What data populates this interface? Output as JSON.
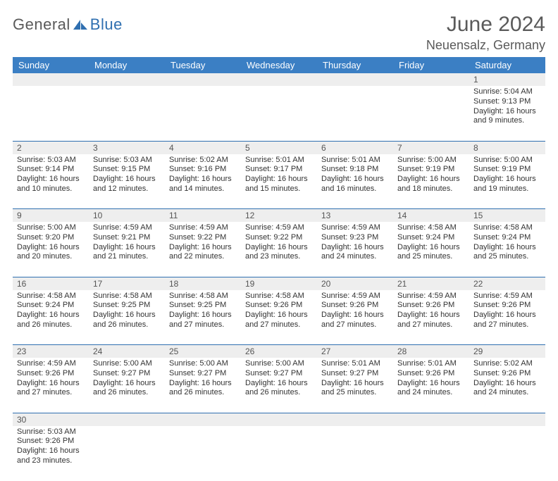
{
  "brand": {
    "general": "General",
    "blue": "Blue"
  },
  "title": "June 2024",
  "location": "Neuensalz, Germany",
  "day_headers": [
    "Sunday",
    "Monday",
    "Tuesday",
    "Wednesday",
    "Thursday",
    "Friday",
    "Saturday"
  ],
  "colors": {
    "header_bg": "#3b7fc4",
    "header_text": "#ffffff",
    "daynum_bg": "#eeeeee",
    "cell_border": "#2f6fb0",
    "title_text": "#5a5a5a",
    "body_text": "#333333",
    "brand_grey": "#5a5a5a",
    "brand_blue": "#2f6fb0"
  },
  "weeks": [
    [
      null,
      null,
      null,
      null,
      null,
      null,
      {
        "n": "1",
        "sr": "Sunrise: 5:04 AM",
        "ss": "Sunset: 9:13 PM",
        "dl": "Daylight: 16 hours and 9 minutes."
      }
    ],
    [
      {
        "n": "2",
        "sr": "Sunrise: 5:03 AM",
        "ss": "Sunset: 9:14 PM",
        "dl": "Daylight: 16 hours and 10 minutes."
      },
      {
        "n": "3",
        "sr": "Sunrise: 5:03 AM",
        "ss": "Sunset: 9:15 PM",
        "dl": "Daylight: 16 hours and 12 minutes."
      },
      {
        "n": "4",
        "sr": "Sunrise: 5:02 AM",
        "ss": "Sunset: 9:16 PM",
        "dl": "Daylight: 16 hours and 14 minutes."
      },
      {
        "n": "5",
        "sr": "Sunrise: 5:01 AM",
        "ss": "Sunset: 9:17 PM",
        "dl": "Daylight: 16 hours and 15 minutes."
      },
      {
        "n": "6",
        "sr": "Sunrise: 5:01 AM",
        "ss": "Sunset: 9:18 PM",
        "dl": "Daylight: 16 hours and 16 minutes."
      },
      {
        "n": "7",
        "sr": "Sunrise: 5:00 AM",
        "ss": "Sunset: 9:19 PM",
        "dl": "Daylight: 16 hours and 18 minutes."
      },
      {
        "n": "8",
        "sr": "Sunrise: 5:00 AM",
        "ss": "Sunset: 9:19 PM",
        "dl": "Daylight: 16 hours and 19 minutes."
      }
    ],
    [
      {
        "n": "9",
        "sr": "Sunrise: 5:00 AM",
        "ss": "Sunset: 9:20 PM",
        "dl": "Daylight: 16 hours and 20 minutes."
      },
      {
        "n": "10",
        "sr": "Sunrise: 4:59 AM",
        "ss": "Sunset: 9:21 PM",
        "dl": "Daylight: 16 hours and 21 minutes."
      },
      {
        "n": "11",
        "sr": "Sunrise: 4:59 AM",
        "ss": "Sunset: 9:22 PM",
        "dl": "Daylight: 16 hours and 22 minutes."
      },
      {
        "n": "12",
        "sr": "Sunrise: 4:59 AM",
        "ss": "Sunset: 9:22 PM",
        "dl": "Daylight: 16 hours and 23 minutes."
      },
      {
        "n": "13",
        "sr": "Sunrise: 4:59 AM",
        "ss": "Sunset: 9:23 PM",
        "dl": "Daylight: 16 hours and 24 minutes."
      },
      {
        "n": "14",
        "sr": "Sunrise: 4:58 AM",
        "ss": "Sunset: 9:24 PM",
        "dl": "Daylight: 16 hours and 25 minutes."
      },
      {
        "n": "15",
        "sr": "Sunrise: 4:58 AM",
        "ss": "Sunset: 9:24 PM",
        "dl": "Daylight: 16 hours and 25 minutes."
      }
    ],
    [
      {
        "n": "16",
        "sr": "Sunrise: 4:58 AM",
        "ss": "Sunset: 9:24 PM",
        "dl": "Daylight: 16 hours and 26 minutes."
      },
      {
        "n": "17",
        "sr": "Sunrise: 4:58 AM",
        "ss": "Sunset: 9:25 PM",
        "dl": "Daylight: 16 hours and 26 minutes."
      },
      {
        "n": "18",
        "sr": "Sunrise: 4:58 AM",
        "ss": "Sunset: 9:25 PM",
        "dl": "Daylight: 16 hours and 27 minutes."
      },
      {
        "n": "19",
        "sr": "Sunrise: 4:58 AM",
        "ss": "Sunset: 9:26 PM",
        "dl": "Daylight: 16 hours and 27 minutes."
      },
      {
        "n": "20",
        "sr": "Sunrise: 4:59 AM",
        "ss": "Sunset: 9:26 PM",
        "dl": "Daylight: 16 hours and 27 minutes."
      },
      {
        "n": "21",
        "sr": "Sunrise: 4:59 AM",
        "ss": "Sunset: 9:26 PM",
        "dl": "Daylight: 16 hours and 27 minutes."
      },
      {
        "n": "22",
        "sr": "Sunrise: 4:59 AM",
        "ss": "Sunset: 9:26 PM",
        "dl": "Daylight: 16 hours and 27 minutes."
      }
    ],
    [
      {
        "n": "23",
        "sr": "Sunrise: 4:59 AM",
        "ss": "Sunset: 9:26 PM",
        "dl": "Daylight: 16 hours and 27 minutes."
      },
      {
        "n": "24",
        "sr": "Sunrise: 5:00 AM",
        "ss": "Sunset: 9:27 PM",
        "dl": "Daylight: 16 hours and 26 minutes."
      },
      {
        "n": "25",
        "sr": "Sunrise: 5:00 AM",
        "ss": "Sunset: 9:27 PM",
        "dl": "Daylight: 16 hours and 26 minutes."
      },
      {
        "n": "26",
        "sr": "Sunrise: 5:00 AM",
        "ss": "Sunset: 9:27 PM",
        "dl": "Daylight: 16 hours and 26 minutes."
      },
      {
        "n": "27",
        "sr": "Sunrise: 5:01 AM",
        "ss": "Sunset: 9:27 PM",
        "dl": "Daylight: 16 hours and 25 minutes."
      },
      {
        "n": "28",
        "sr": "Sunrise: 5:01 AM",
        "ss": "Sunset: 9:26 PM",
        "dl": "Daylight: 16 hours and 24 minutes."
      },
      {
        "n": "29",
        "sr": "Sunrise: 5:02 AM",
        "ss": "Sunset: 9:26 PM",
        "dl": "Daylight: 16 hours and 24 minutes."
      }
    ],
    [
      {
        "n": "30",
        "sr": "Sunrise: 5:03 AM",
        "ss": "Sunset: 9:26 PM",
        "dl": "Daylight: 16 hours and 23 minutes."
      },
      null,
      null,
      null,
      null,
      null,
      null
    ]
  ]
}
